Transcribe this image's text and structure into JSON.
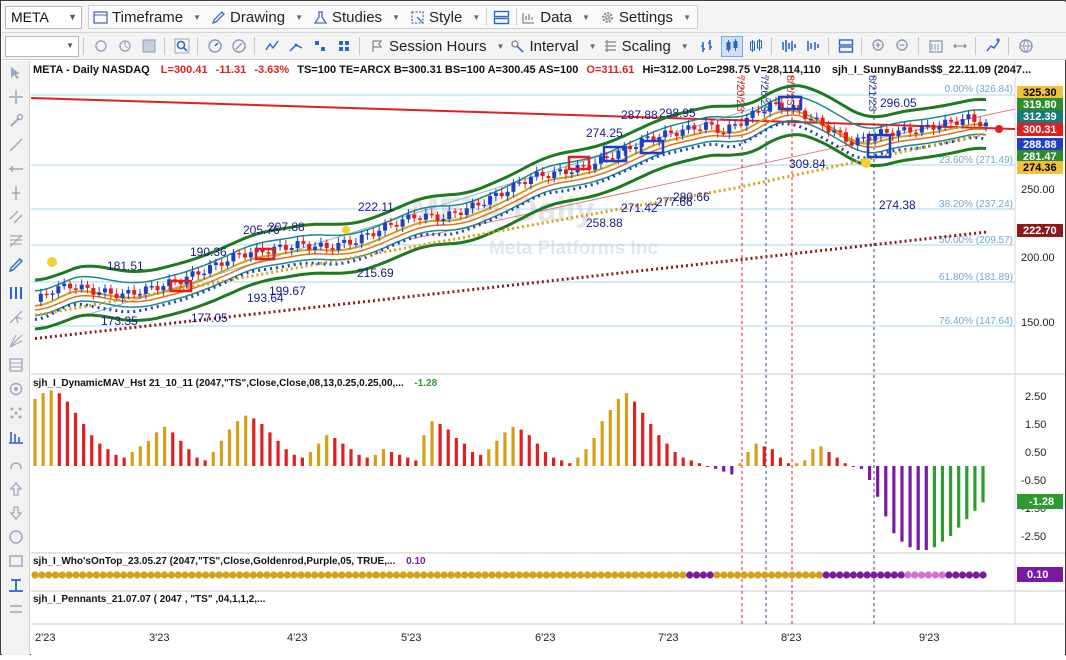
{
  "toolbar": {
    "symbol": "META",
    "items": [
      {
        "label": "Timeframe",
        "icon": "timeframe-icon"
      },
      {
        "label": "Drawing",
        "icon": "pencil-icon"
      },
      {
        "label": "Studies",
        "icon": "studies-icon"
      },
      {
        "label": "Style",
        "icon": "style-icon"
      },
      {
        "label": "Data",
        "icon": "data-icon"
      },
      {
        "label": "Settings",
        "icon": "gear-icon"
      }
    ],
    "row2": {
      "session": "Session Hours",
      "interval": "Interval",
      "scaling": "Scaling"
    }
  },
  "header": {
    "symbol_info": "META - Daily  NASDAQ",
    "L": "L=300.41",
    "chg": "-11.31",
    "pct": "-3.63%",
    "mid": "TS=100  TE=ARCX  B=300.31  BS=100  A=300.45  AS=100",
    "O": "O=311.61",
    "rest": "Hi=312.00  Lo=298.75  V=28,114,110",
    "study": "sjh_I_SunnyBands$$_22.11.09 (2047..."
  },
  "watermark": {
    "symbol": "META Daily",
    "name": "Meta Platforms Inc"
  },
  "fib_labels": [
    "0.00% (326.84)",
    "23.60% (271.49)",
    "38.20% (237.24)",
    "50.00% (209.57)",
    "61.80% (181.89)",
    "76.40% (147.64)"
  ],
  "price_axis": [
    "250.00",
    "200.00",
    "150.00"
  ],
  "price_tags": [
    {
      "text": "325.30",
      "color": "#f0c040",
      "fg": "#000"
    },
    {
      "text": "319.80",
      "color": "#2e8b2e",
      "fg": "#fff"
    },
    {
      "text": "312.39",
      "color": "#1a7a7a",
      "fg": "#fff"
    },
    {
      "text": "300.31",
      "color": "#e02020",
      "fg": "#fff"
    },
    {
      "text": "288.88",
      "color": "#1f3fbf",
      "fg": "#fff"
    },
    {
      "text": "281.47",
      "color": "#2e8b2e",
      "fg": "#fff"
    },
    {
      "text": "274.36",
      "color": "#f0c040",
      "fg": "#000"
    },
    {
      "text": "222.70",
      "color": "#8b1a1a",
      "fg": "#fff"
    }
  ],
  "annotations": [
    "181.51",
    "173.35",
    "190.36",
    "205.76",
    "207.88",
    "199.67",
    "193.64",
    "177.05",
    "222.11",
    "215.69",
    "274.25",
    "258.88",
    "271.42",
    "277.66",
    "280.66",
    "287.88",
    "298.95",
    "309.84",
    "296.05",
    "274.38"
  ],
  "date_labels": [
    "7/20/23",
    "7/26/23",
    "8/2/23",
    "8/21/23"
  ],
  "x_axis": [
    "2'23",
    "3'23",
    "4'23",
    "5'23",
    "6'23",
    "7'23",
    "8'23",
    "9'23"
  ],
  "panel2": {
    "title": "sjh_I_DynamicMAV_Hst 21_10_11 (2047,\"TS\",Close,Close,08,13,0.25,0.25,00,...",
    "value": "-1.28",
    "axis": [
      "2.50",
      "1.50",
      "0.50",
      "-0.50",
      "-1.50",
      "-2.50"
    ],
    "tag": "-1.28"
  },
  "panel3": {
    "title": "sjh_I_Who'sOnTop_23.05.27 (2047,\"TS\",Close,Goldenrod,Purple,05,  TRUE,...",
    "value": "0.10",
    "tag": "0.10"
  },
  "panel4": {
    "title": "sjh_I_Pennants_21.07.07 (  2047 ,  \"TS\" ,04,1,1,2,..."
  },
  "colors": {
    "up": "#1f3fbf",
    "down": "#e02020",
    "green_band": "#1e7a1e",
    "teal_band": "#1a8a8a",
    "gold": "#d4a017",
    "purple": "#7a1aa0",
    "dark_red": "#8b1a1a"
  },
  "chart_data": {
    "type": "candlestick",
    "title": "META - Daily  NASDAQ",
    "x_ticks": [
      "2'23",
      "3'23",
      "4'23",
      "5'23",
      "6'23",
      "7'23",
      "8'23",
      "9'23"
    ],
    "y_ticks": [
      150,
      200,
      250
    ],
    "ylim": [
      130,
      335
    ],
    "close_path": [
      {
        "t": 0,
        "v": 170
      },
      {
        "t": 3,
        "v": 179
      },
      {
        "t": 6,
        "v": 182
      },
      {
        "t": 10,
        "v": 178
      },
      {
        "t": 15,
        "v": 175
      },
      {
        "t": 20,
        "v": 180
      },
      {
        "t": 25,
        "v": 186
      },
      {
        "t": 30,
        "v": 195
      },
      {
        "t": 35,
        "v": 205
      },
      {
        "t": 40,
        "v": 208
      },
      {
        "t": 45,
        "v": 212
      },
      {
        "t": 50,
        "v": 210
      },
      {
        "t": 55,
        "v": 215
      },
      {
        "t": 60,
        "v": 225
      },
      {
        "t": 65,
        "v": 233
      },
      {
        "t": 70,
        "v": 232
      },
      {
        "t": 75,
        "v": 240
      },
      {
        "t": 80,
        "v": 250
      },
      {
        "t": 85,
        "v": 262
      },
      {
        "t": 90,
        "v": 265
      },
      {
        "t": 95,
        "v": 270
      },
      {
        "t": 100,
        "v": 280
      },
      {
        "t": 105,
        "v": 290
      },
      {
        "t": 110,
        "v": 295
      },
      {
        "t": 115,
        "v": 300
      },
      {
        "t": 118,
        "v": 295
      },
      {
        "t": 122,
        "v": 305
      },
      {
        "t": 126,
        "v": 315
      },
      {
        "t": 130,
        "v": 312
      },
      {
        "t": 135,
        "v": 300
      },
      {
        "t": 140,
        "v": 287
      },
      {
        "t": 145,
        "v": 294
      },
      {
        "t": 150,
        "v": 296
      },
      {
        "t": 155,
        "v": 300
      },
      {
        "t": 160,
        "v": 305
      },
      {
        "t": 163,
        "v": 300
      }
    ],
    "histogram": {
      "name": "sjh_I_DynamicMAV_Hst",
      "values": [
        2.4,
        2.6,
        2.7,
        2.6,
        2.3,
        1.9,
        1.5,
        1.1,
        0.8,
        0.6,
        0.4,
        0.3,
        0.5,
        0.7,
        0.9,
        1.2,
        1.4,
        1.2,
        0.9,
        0.6,
        0.3,
        0.2,
        0.5,
        0.9,
        1.3,
        1.6,
        1.8,
        1.7,
        1.5,
        1.2,
        0.9,
        0.6,
        0.4,
        0.3,
        0.5,
        0.8,
        1.1,
        1.0,
        0.8,
        0.6,
        0.4,
        0.3,
        0.4,
        0.6,
        0.5,
        0.4,
        0.3,
        0.2,
        1.1,
        1.6,
        1.5,
        1.3,
        1.0,
        0.8,
        0.5,
        0.4,
        0.6,
        0.9,
        1.2,
        1.4,
        1.3,
        1.1,
        0.8,
        0.5,
        0.3,
        0.2,
        0.1,
        0.3,
        0.6,
        1.0,
        1.6,
        2.0,
        2.4,
        2.6,
        2.3,
        1.9,
        1.5,
        1.1,
        0.8,
        0.5,
        0.3,
        0.2,
        0.1,
        0.0,
        -0.1,
        -0.2,
        -0.3,
        0.1,
        0.5,
        0.8,
        0.7,
        0.6,
        0.3,
        0.1,
        0.1,
        0.2,
        0.6,
        0.7,
        0.5,
        0.3,
        0.1,
        0.0,
        -0.1,
        -0.5,
        -1.1,
        -1.8,
        -2.4,
        -2.7,
        -2.9,
        -3.0,
        -3.0,
        -2.9,
        -2.7,
        -2.5,
        -2.2,
        -1.9,
        -1.6,
        -1.3
      ]
    }
  }
}
